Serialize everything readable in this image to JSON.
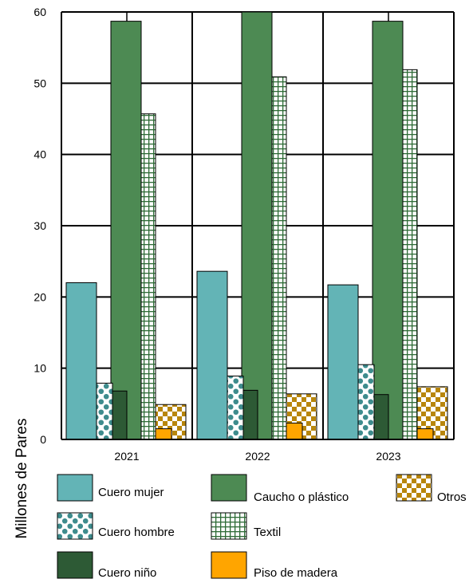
{
  "chart_data": {
    "type": "bar",
    "categories": [
      "2021",
      "2022",
      "2023"
    ],
    "ylabel": "Millones de Pares",
    "xlabel": "",
    "ylim": [
      0,
      60
    ],
    "yticks": [
      0,
      10,
      20,
      30,
      40,
      50,
      60
    ],
    "grid": true,
    "legend_position": "bottom",
    "series": [
      {
        "name": "Cuero mujer",
        "values": [
          22.0,
          23.6,
          21.7
        ],
        "color": "#63b4b6",
        "pattern": "solid"
      },
      {
        "name": "Cuero hombre",
        "values": [
          7.9,
          8.9,
          10.5
        ],
        "color": "#3e8c8d",
        "pattern": "dots"
      },
      {
        "name": "Cuero niño",
        "values": [
          6.8,
          6.9,
          6.3
        ],
        "color": "#2d5a35",
        "pattern": "solid"
      },
      {
        "name": "Caucho o plástico",
        "values": [
          58.7,
          60.0,
          58.7
        ],
        "color": "#4d8a53",
        "pattern": "solid"
      },
      {
        "name": "Textil",
        "values": [
          45.7,
          50.9,
          51.9
        ],
        "color": "#2e6b36",
        "pattern": "grid"
      },
      {
        "name": "Piso de madera",
        "values": [
          1.5,
          2.3,
          1.5
        ],
        "color": "#ffa500",
        "pattern": "solid"
      },
      {
        "name": "Otros",
        "values": [
          4.9,
          6.4,
          7.4
        ],
        "color": "#b8860b",
        "pattern": "checker"
      }
    ],
    "legend_order": [
      "Cuero mujer",
      "Caucho o plástico",
      "Otros",
      "Cuero hombre",
      "Textil",
      "Cuero niño",
      "Piso de madera"
    ]
  }
}
